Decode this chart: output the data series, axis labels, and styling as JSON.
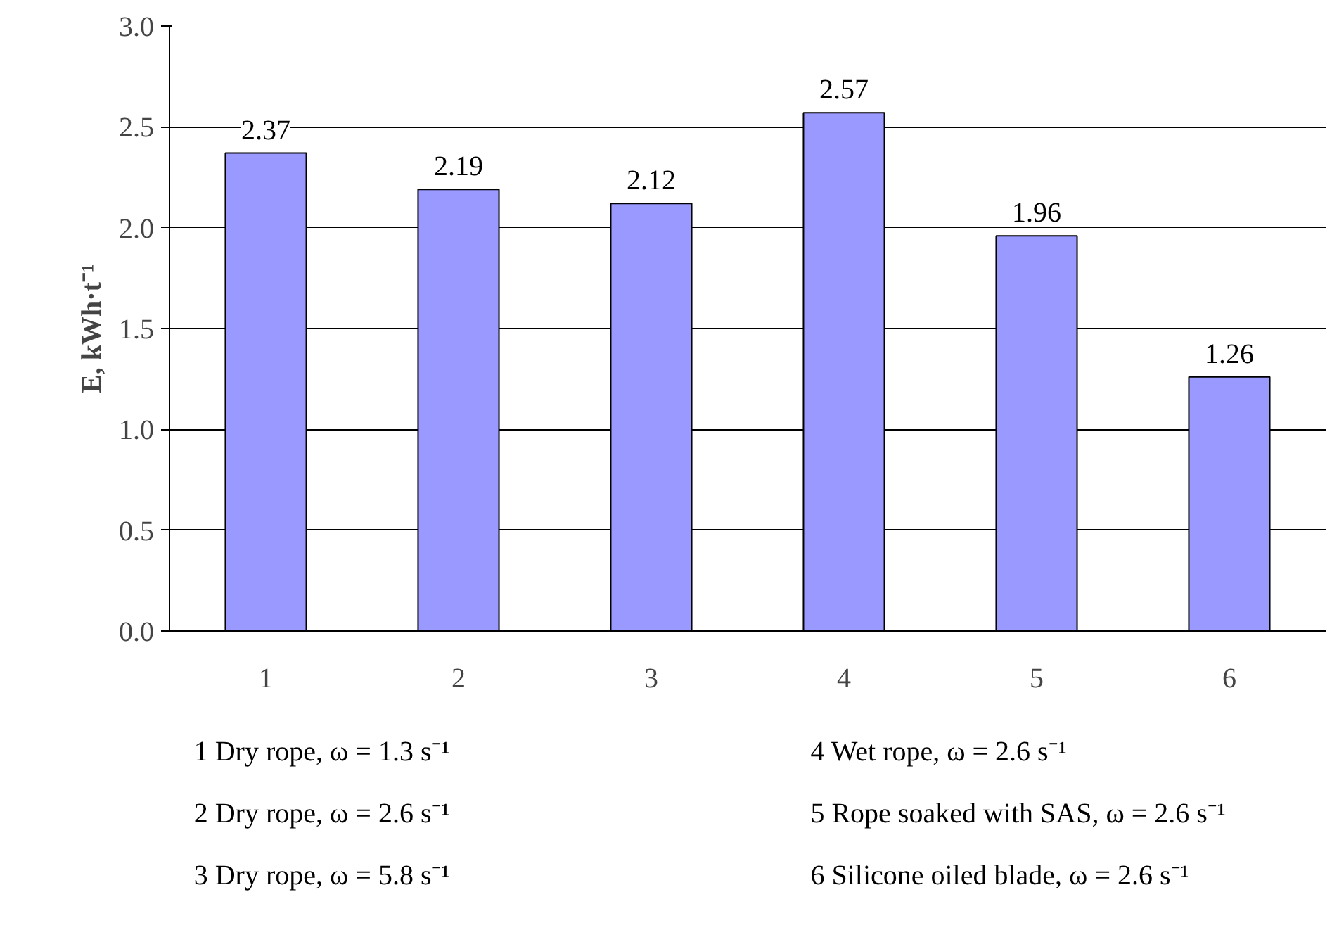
{
  "chart_data": {
    "type": "bar",
    "ylabel": "E, kWh·t⁻¹",
    "categories": [
      "1",
      "2",
      "3",
      "4",
      "5",
      "6"
    ],
    "values": [
      2.37,
      2.19,
      2.12,
      2.57,
      1.96,
      1.26
    ],
    "color": "#9999ff",
    "data_labels": true,
    "grid": "y",
    "ylim": [
      0,
      3.0
    ],
    "yticks": [
      {
        "value": 0,
        "label": "0.0"
      },
      0.5,
      {
        "value": 1,
        "label": "1.0"
      },
      1.5,
      {
        "value": 2,
        "label": "2.0"
      },
      2.5,
      {
        "value": 3,
        "label": "3.0"
      }
    ],
    "annotations": [
      "1   Dry rope,  ω = 1.3 s⁻¹",
      "2   Dry rope, ω = 2.6 s⁻¹",
      "3   Dry rope, ω = 5.8 s⁻¹",
      "4   Wet rope, ω = 2.6 s⁻¹",
      "5   Rope soaked with SAS, ω = 2.6 s⁻¹",
      "6   Silicone oiled blade, ω = 2.6 s⁻¹"
    ]
  }
}
